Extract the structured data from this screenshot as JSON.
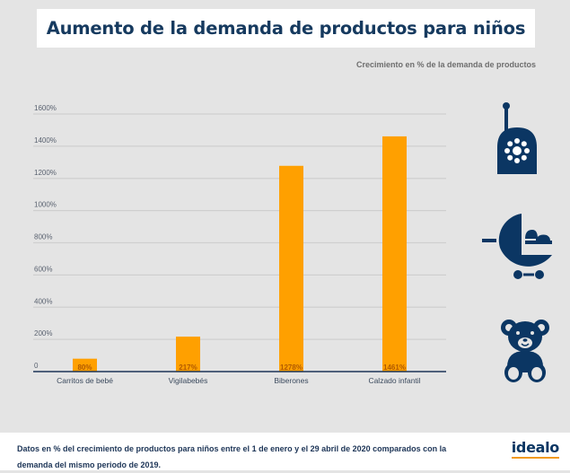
{
  "title": "Aumento de la demanda de productos para niños",
  "subtitle": "Crecimiento en % de la demanda de productos",
  "colors": {
    "bar": "#ffa000",
    "axis": "#1d3557",
    "title": "#163a5f",
    "icon": "#0b3663",
    "logo_underline": "#f29a1f"
  },
  "chart_data": {
    "type": "bar",
    "title": "Aumento de la demanda de productos para niños",
    "subtitle": "Crecimiento en % de la demanda de productos",
    "categories": [
      "Carritos de bebé",
      "Vigilabebés",
      "Biberones",
      "Calzado infantil"
    ],
    "values": [
      80,
      217,
      1278,
      1461
    ],
    "value_labels": [
      "80%",
      "217%",
      "1278%",
      "1461%"
    ],
    "xlabel": "",
    "ylabel": "",
    "ylim": [
      0,
      1600
    ],
    "yticks": [
      0,
      200,
      400,
      600,
      800,
      1000,
      1200,
      1400,
      1600
    ],
    "ytick_labels": [
      "0",
      "200%",
      "400%",
      "600%",
      "800%",
      "1000%",
      "1200%",
      "1400%",
      "1600%"
    ],
    "grid": true,
    "legend": "none"
  },
  "icons": [
    "baby-monitor-icon",
    "stroller-icon",
    "teddy-bear-icon"
  ],
  "footer": {
    "note": "Datos en % del crecimiento de productos para niños entre el 1 de enero  y el 29 abril de 2020 comparados con la demanda del mismo periodo de 2019.",
    "logo": "idealo"
  }
}
